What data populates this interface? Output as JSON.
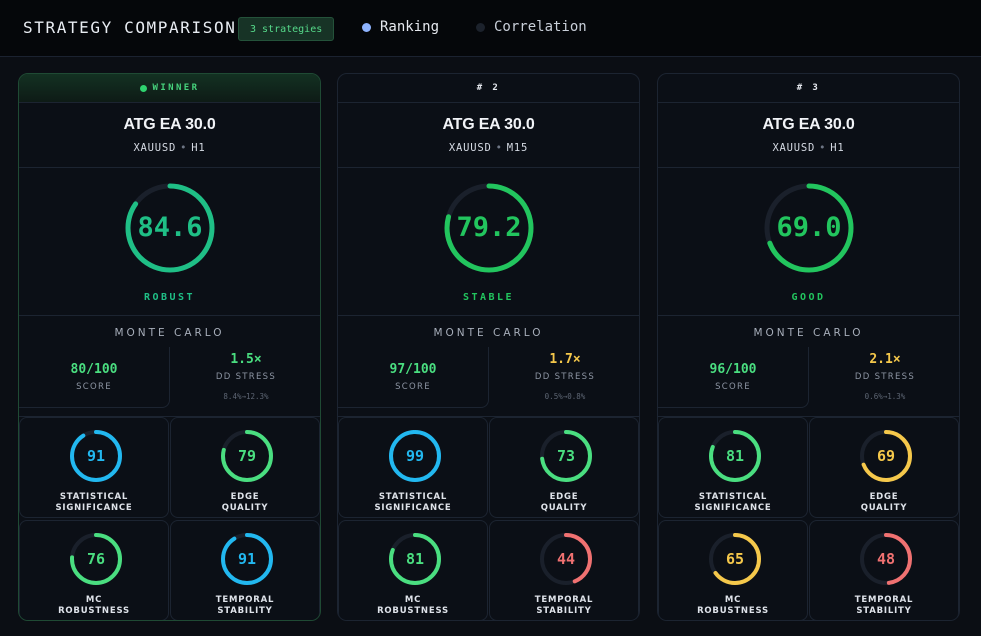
{
  "header": {
    "title": "STRATEGY COMPARISON",
    "badge": "3 strategies",
    "tabs": [
      {
        "label": "Ranking",
        "active": true
      },
      {
        "label": "Correlation",
        "active": false
      }
    ]
  },
  "monte_carlo_title": "MONTE CARLO",
  "labels": {
    "score": "SCORE",
    "dd_stress": "DD STRESS"
  },
  "colors": {
    "green": "#22c55e",
    "teal": "#1fbf86",
    "blue": "#22b8f0",
    "yellow": "#f5c84b",
    "red": "#f07171",
    "track": "#1a202b"
  },
  "strategies": [
    {
      "rank": "WINNER",
      "name": "ATG EA 30.0",
      "symbol": "XAUUSD",
      "timeframe": "H1",
      "score": 84.6,
      "score_text": "84.6",
      "verdict": "ROBUST",
      "score_color": "#1fbf86",
      "mc_score": "80/100",
      "mc_score_color": "#4ade80",
      "dd_stress": "1.5×",
      "dd_stress_color": "#4ade80",
      "dd_range": "8.4%→12.3%",
      "metrics": [
        {
          "name_line1": "STATISTICAL",
          "name_line2": "SIGNIFICANCE",
          "value": 91,
          "color": "#22b8f0"
        },
        {
          "name_line1": "EDGE",
          "name_line2": "QUALITY",
          "value": 79,
          "color": "#4ade80"
        },
        {
          "name_line1": "MC",
          "name_line2": "ROBUSTNESS",
          "value": 76,
          "color": "#4ade80"
        },
        {
          "name_line1": "TEMPORAL",
          "name_line2": "STABILITY",
          "value": 91,
          "color": "#22b8f0"
        }
      ]
    },
    {
      "rank": "# 2",
      "name": "ATG EA 30.0",
      "symbol": "XAUUSD",
      "timeframe": "M15",
      "score": 79.2,
      "score_text": "79.2",
      "verdict": "STABLE",
      "score_color": "#22c55e",
      "mc_score": "97/100",
      "mc_score_color": "#4ade80",
      "dd_stress": "1.7×",
      "dd_stress_color": "#f5c84b",
      "dd_range": "0.5%→0.8%",
      "metrics": [
        {
          "name_line1": "STATISTICAL",
          "name_line2": "SIGNIFICANCE",
          "value": 99,
          "color": "#22b8f0"
        },
        {
          "name_line1": "EDGE",
          "name_line2": "QUALITY",
          "value": 73,
          "color": "#4ade80"
        },
        {
          "name_line1": "MC",
          "name_line2": "ROBUSTNESS",
          "value": 81,
          "color": "#4ade80"
        },
        {
          "name_line1": "TEMPORAL",
          "name_line2": "STABILITY",
          "value": 44,
          "color": "#f07171"
        }
      ]
    },
    {
      "rank": "# 3",
      "name": "ATG EA 30.0",
      "symbol": "XAUUSD",
      "timeframe": "H1",
      "score": 69.0,
      "score_text": "69.0",
      "verdict": "GOOD",
      "score_color": "#22c55e",
      "mc_score": "96/100",
      "mc_score_color": "#4ade80",
      "dd_stress": "2.1×",
      "dd_stress_color": "#f5c84b",
      "dd_range": "0.6%→1.3%",
      "metrics": [
        {
          "name_line1": "STATISTICAL",
          "name_line2": "SIGNIFICANCE",
          "value": 81,
          "color": "#4ade80"
        },
        {
          "name_line1": "EDGE",
          "name_line2": "QUALITY",
          "value": 69,
          "color": "#f5c84b"
        },
        {
          "name_line1": "MC",
          "name_line2": "ROBUSTNESS",
          "value": 65,
          "color": "#f5c84b"
        },
        {
          "name_line1": "TEMPORAL",
          "name_line2": "STABILITY",
          "value": 48,
          "color": "#f07171"
        }
      ]
    }
  ]
}
